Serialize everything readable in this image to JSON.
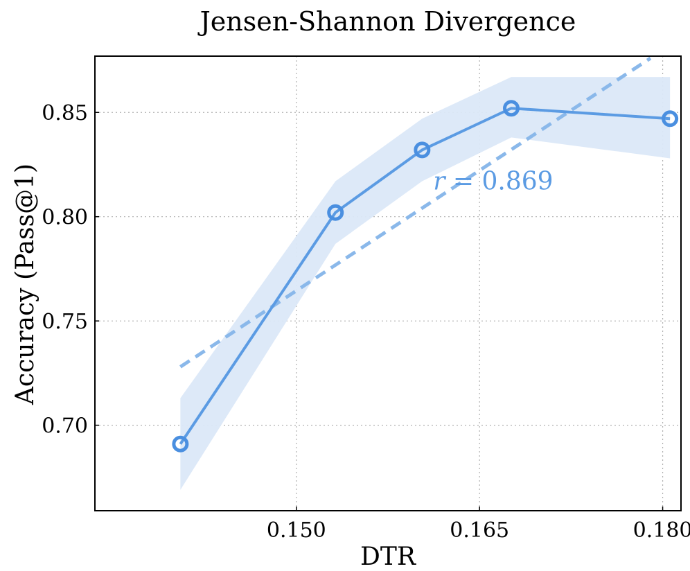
{
  "chart_data": {
    "type": "line",
    "title": "Jensen-Shannon Divergence",
    "xlabel": "DTR",
    "ylabel": "Accuracy (Pass@1)",
    "xlim": [
      0.1335,
      0.1815
    ],
    "ylim": [
      0.659,
      0.877
    ],
    "xticks": [
      0.15,
      0.165,
      0.18
    ],
    "xtick_labels": [
      "0.150",
      "0.165",
      "0.180"
    ],
    "yticks": [
      0.7,
      0.75,
      0.8,
      0.85
    ],
    "ytick_labels": [
      "0.70",
      "0.75",
      "0.80",
      "0.85"
    ],
    "grid": true,
    "series": [
      {
        "name": "Accuracy",
        "color": "#5b9be3",
        "x": [
          0.1405,
          0.1532,
          0.1603,
          0.1676,
          0.1806
        ],
        "y": [
          0.691,
          0.802,
          0.832,
          0.852,
          0.847
        ],
        "band_lower": [
          0.669,
          0.787,
          0.817,
          0.838,
          0.828
        ],
        "band_upper": [
          0.713,
          0.817,
          0.847,
          0.867,
          0.867
        ],
        "band_color": "#dbe8f8"
      }
    ],
    "fit_line": {
      "style": "dashed",
      "color": "#8ab8ea",
      "x": [
        0.1405,
        0.179
      ],
      "y": [
        0.728,
        0.876
      ]
    },
    "annotation": {
      "text_var": "r",
      "text_eq": " = 0.869",
      "x": 0.1612,
      "y": 0.813,
      "color": "#5b9be3"
    }
  }
}
